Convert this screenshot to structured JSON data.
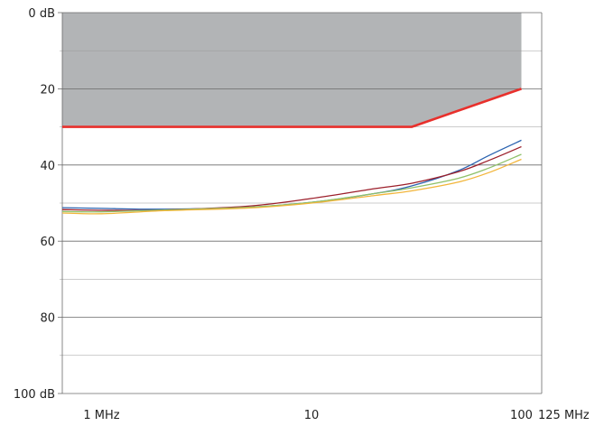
{
  "chart_data": {
    "type": "line",
    "title": "",
    "xlabel": "",
    "ylabel": "",
    "x_scale": "log",
    "x_range": [
      0.65,
      125
    ],
    "y_range": [
      0,
      100
    ],
    "y_inverted": true,
    "grid": true,
    "y_ticks": [
      {
        "value": 0,
        "label": "0 dB"
      },
      {
        "value": 20,
        "label": "20"
      },
      {
        "value": 40,
        "label": "40"
      },
      {
        "value": 60,
        "label": "60"
      },
      {
        "value": 80,
        "label": "80"
      },
      {
        "value": 100,
        "label": "100 dB"
      }
    ],
    "y_minor_ticks": [
      10,
      30,
      50,
      70,
      90
    ],
    "x_ticks": [
      {
        "value": 1,
        "label": "1 MHz"
      },
      {
        "value": 10,
        "label": "10"
      },
      {
        "value": 100,
        "label": "100"
      },
      {
        "value": 125,
        "label": "125 MHz"
      }
    ],
    "shaded_region": {
      "color": "#b2b4b6",
      "upper_value": 0,
      "boundary": [
        [
          0.65,
          30
        ],
        [
          30,
          30
        ],
        [
          100,
          20
        ]
      ]
    },
    "limit_line": {
      "color": "#e8302c",
      "points": [
        [
          0.65,
          30
        ],
        [
          30,
          30
        ],
        [
          100,
          20
        ]
      ]
    },
    "series": [
      {
        "color": "#2b63b0",
        "points": [
          [
            0.65,
            51.2
          ],
          [
            1,
            51.4
          ],
          [
            2,
            51.6
          ],
          [
            5,
            51.1
          ],
          [
            10,
            49.8
          ],
          [
            20,
            47.5
          ],
          [
            30,
            45.5
          ],
          [
            50,
            41.5
          ],
          [
            70,
            37.5
          ],
          [
            100,
            33.5
          ]
        ]
      },
      {
        "color": "#9c1f2b",
        "points": [
          [
            0.65,
            51.7
          ],
          [
            1,
            51.9
          ],
          [
            2,
            51.8
          ],
          [
            5,
            50.8
          ],
          [
            10,
            48.8
          ],
          [
            20,
            46.2
          ],
          [
            30,
            44.8
          ],
          [
            50,
            41.8
          ],
          [
            70,
            38.8
          ],
          [
            100,
            35.2
          ]
        ]
      },
      {
        "color": "#8fc16a",
        "points": [
          [
            0.65,
            52.2
          ],
          [
            1,
            52.3
          ],
          [
            2,
            51.8
          ],
          [
            5,
            51.1
          ],
          [
            10,
            49.8
          ],
          [
            20,
            47.5
          ],
          [
            30,
            46.0
          ],
          [
            50,
            43.5
          ],
          [
            70,
            40.8
          ],
          [
            100,
            37.2
          ]
        ]
      },
      {
        "color": "#f2b53a",
        "points": [
          [
            0.65,
            52.6
          ],
          [
            1,
            52.8
          ],
          [
            2,
            52.0
          ],
          [
            5,
            51.3
          ],
          [
            10,
            50.0
          ],
          [
            20,
            48.0
          ],
          [
            30,
            46.8
          ],
          [
            50,
            44.5
          ],
          [
            70,
            42.0
          ],
          [
            100,
            38.5
          ]
        ]
      }
    ]
  }
}
